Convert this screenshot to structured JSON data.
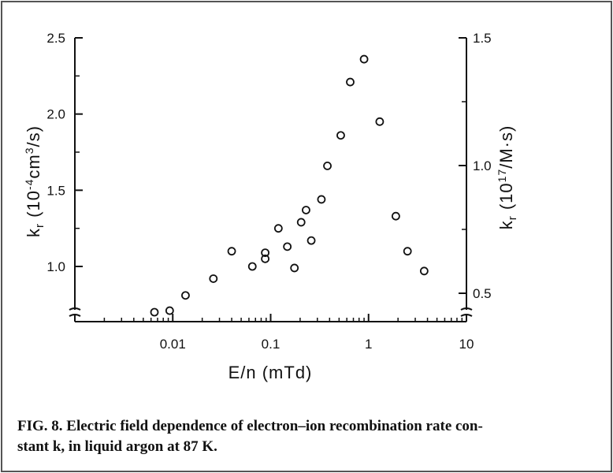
{
  "figure": {
    "caption_line1": "FIG. 8. Electric field dependence of electron–ion recombination rate con-",
    "caption_line2": "stant k, in liquid argon at 87 K."
  },
  "chart_data": {
    "type": "scatter",
    "xlabel": "E/n (mTd)",
    "ylabel": "k_r (10^-4 cm^3/s)",
    "ylabel_right": "k_r (10^17/M·s)",
    "x_scale": "log",
    "xlim": [
      0.001,
      10
    ],
    "ylim": [
      0.8,
      2.5
    ],
    "ylim_right": [
      0.45,
      1.5
    ],
    "y_axis_break": true,
    "x_ticks": [
      "0.01",
      "0.1",
      "1",
      "10"
    ],
    "y_ticks": [
      "1.0",
      "1.5",
      "2.0",
      "2.5"
    ],
    "y_ticks_right": [
      "0.5",
      "1.0",
      "1.5"
    ],
    "grid": false,
    "marker": "open-circle",
    "points": [
      {
        "x": 0.0065,
        "y": 0.7
      },
      {
        "x": 0.0093,
        "y": 0.71
      },
      {
        "x": 0.0135,
        "y": 0.81
      },
      {
        "x": 0.026,
        "y": 0.92
      },
      {
        "x": 0.04,
        "y": 1.1
      },
      {
        "x": 0.065,
        "y": 1.0
      },
      {
        "x": 0.088,
        "y": 1.05
      },
      {
        "x": 0.088,
        "y": 1.09
      },
      {
        "x": 0.12,
        "y": 1.25
      },
      {
        "x": 0.148,
        "y": 1.13
      },
      {
        "x": 0.175,
        "y": 0.99
      },
      {
        "x": 0.205,
        "y": 1.29
      },
      {
        "x": 0.23,
        "y": 1.37
      },
      {
        "x": 0.26,
        "y": 1.17
      },
      {
        "x": 0.33,
        "y": 1.44
      },
      {
        "x": 0.38,
        "y": 1.66
      },
      {
        "x": 0.52,
        "y": 1.86
      },
      {
        "x": 0.65,
        "y": 2.21
      },
      {
        "x": 0.9,
        "y": 2.36
      },
      {
        "x": 1.3,
        "y": 1.95
      },
      {
        "x": 1.9,
        "y": 1.33
      },
      {
        "x": 2.5,
        "y": 1.1
      },
      {
        "x": 3.7,
        "y": 0.97
      }
    ]
  }
}
